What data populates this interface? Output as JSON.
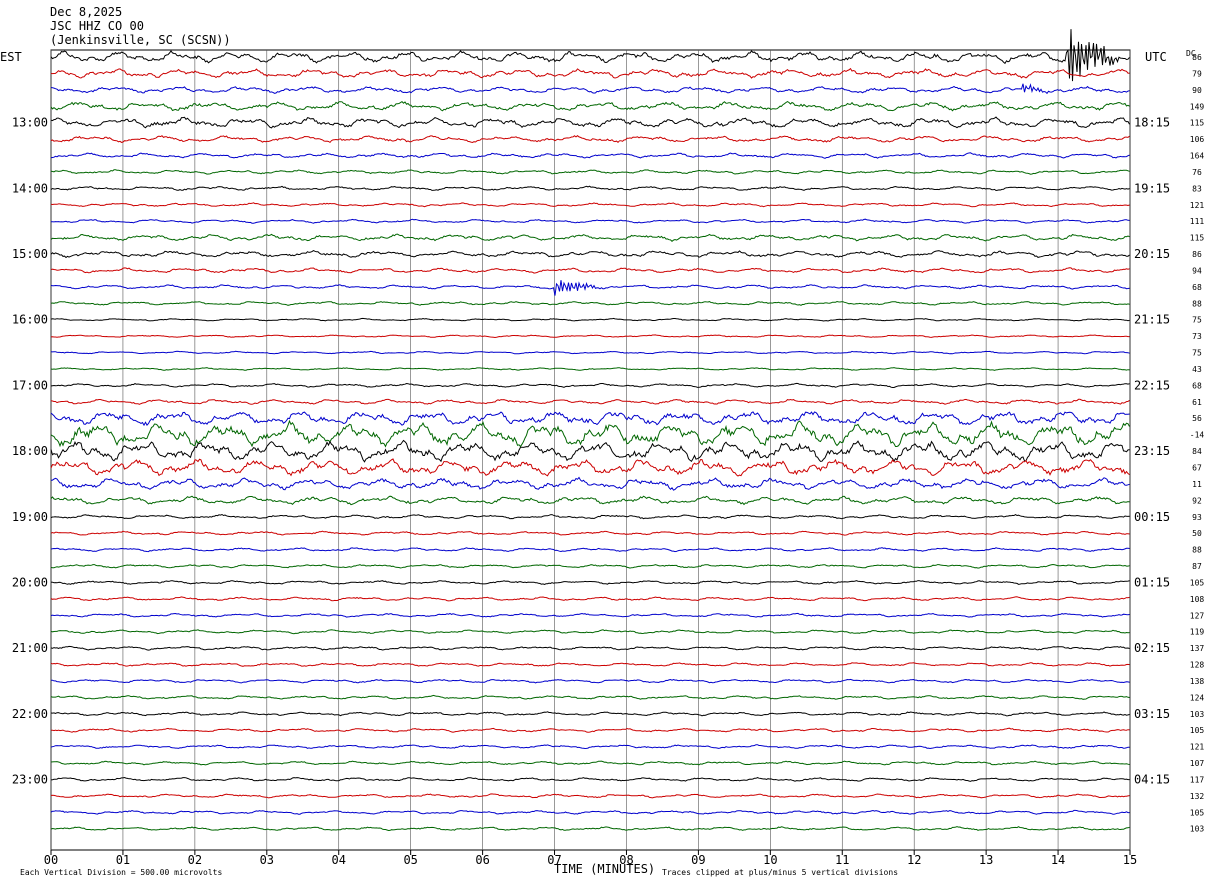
{
  "header": {
    "date": "Dec 8,2025",
    "station": "JSC HHZ CO 00",
    "location": "(Jenkinsville, SC (SCSN))"
  },
  "labels": {
    "left_zone": "EST",
    "right_zone": "UTC",
    "dc_heading": "DC",
    "x_axis_title": "TIME (MINUTES)",
    "scale_note": "Each Vertical Division =  500.00 microvolts",
    "clip_note": "Traces clipped at plus/minus 5 vertical divisions"
  },
  "colors": {
    "trace_cycle": [
      "#000000",
      "#cc0000",
      "#0000cc",
      "#006600"
    ],
    "grid": "#555555"
  },
  "chart_data": {
    "type": "line",
    "title": "",
    "x_ticks": [
      "00",
      "01",
      "02",
      "03",
      "04",
      "05",
      "06",
      "07",
      "08",
      "09",
      "10",
      "11",
      "12",
      "13",
      "14",
      "15"
    ],
    "xlim": [
      0,
      15
    ],
    "left_hour_labels": [
      "13:00",
      "14:00",
      "15:00",
      "16:00",
      "17:00",
      "18:00",
      "19:00",
      "20:00",
      "21:00",
      "22:00",
      "23:00"
    ],
    "right_hour_labels": [
      "18:15",
      "19:15",
      "20:15",
      "21:15",
      "22:15",
      "23:15",
      "00:15",
      "01:15",
      "02:15",
      "03:15",
      "04:15"
    ],
    "trace_count": 48,
    "dc_offsets": [
      "86",
      "79",
      "90",
      "149",
      "115",
      "106",
      "164",
      "76",
      "83",
      "121",
      "111",
      "115",
      "86",
      "94",
      "68",
      "88",
      "75",
      "73",
      "75",
      "43",
      "68",
      "61",
      "56",
      "-14",
      "84",
      "67",
      "11",
      "92",
      "93",
      "50",
      "88",
      "87",
      "105",
      "108",
      "127",
      "119",
      "137",
      "128",
      "138",
      "124",
      "103",
      "105",
      "121",
      "107",
      "117",
      "132",
      "105",
      "103"
    ],
    "amplitude_divisions": [
      2.8,
      2.2,
      1.6,
      2.2,
      2.5,
      1.6,
      1.2,
      1.0,
      1.0,
      0.9,
      0.9,
      1.6,
      1.6,
      1.2,
      1.0,
      0.9,
      0.6,
      0.6,
      0.6,
      0.6,
      0.9,
      1.2,
      3.5,
      6.0,
      5.0,
      4.0,
      2.8,
      2.0,
      1.0,
      0.9,
      0.9,
      0.9,
      0.9,
      0.9,
      0.9,
      0.9,
      0.9,
      0.9,
      0.9,
      0.9,
      0.9,
      0.9,
      0.9,
      0.9,
      0.9,
      0.9,
      0.9,
      0.9
    ],
    "events": [
      {
        "trace": 0,
        "start_min": 14.1,
        "end_min": 14.9,
        "amplitude_divisions": 8
      },
      {
        "trace": 2,
        "start_min": 13.5,
        "end_min": 13.9,
        "amplitude_divisions": 1.5
      },
      {
        "trace": 14,
        "start_min": 7.0,
        "end_min": 7.7,
        "amplitude_divisions": 2.5
      }
    ]
  }
}
